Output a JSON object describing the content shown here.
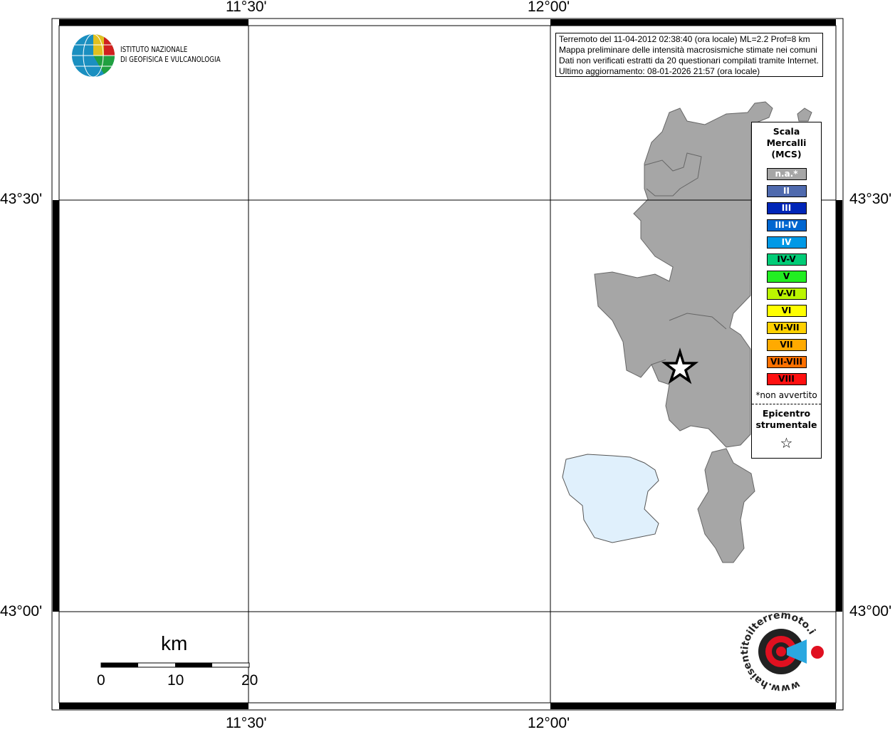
{
  "map": {
    "lon_labels": [
      "11°30'",
      "12°00'"
    ],
    "lat_labels": [
      "43°30'",
      "43°00'"
    ],
    "epicenter_marker": "star-icon",
    "land_color": "#a6a6a6",
    "lake_color": "#e0f0fc"
  },
  "logo": {
    "line1": "ISTITUTO NAZIONALE",
    "line2": "DI GEOFISICA E VULCANOLOGIA"
  },
  "info": {
    "line1": "Terremoto del 11-04-2012 02:38:40 (ora locale) ML=2.2 Prof=8 km",
    "line2": "Mappa preliminare delle intensità macrosismiche stimate nei comuni",
    "line3": "Dati non verificati estratti da 20 questionari compilati tramite Internet.",
    "line4": "Ultimo aggiornamento: 08-01-2026 21:57 (ora locale)"
  },
  "legend": {
    "title": [
      "Scala",
      "Mercalli",
      "(MCS)"
    ],
    "classes": [
      {
        "label": "n.a.*",
        "color": "#a6a6a6",
        "text": "#fff"
      },
      {
        "label": "II",
        "color": "#4f6aae",
        "text": "#fff"
      },
      {
        "label": "III",
        "color": "#0026b8",
        "text": "#fff"
      },
      {
        "label": "III-IV",
        "color": "#0066d0",
        "text": "#fff"
      },
      {
        "label": "IV",
        "color": "#0099e6",
        "text": "#fff"
      },
      {
        "label": "IV-V",
        "color": "#00cc77",
        "text": "#000"
      },
      {
        "label": "V",
        "color": "#22ee22",
        "text": "#000"
      },
      {
        "label": "V-VI",
        "color": "#bbf500",
        "text": "#000"
      },
      {
        "label": "VI",
        "color": "#ffff00",
        "text": "#000"
      },
      {
        "label": "VI-VII",
        "color": "#ffd000",
        "text": "#000"
      },
      {
        "label": "VII",
        "color": "#ffaa00",
        "text": "#000"
      },
      {
        "label": "VII-VIII",
        "color": "#ff7000",
        "text": "#000"
      },
      {
        "label": "VIII",
        "color": "#ff1010",
        "text": "#000"
      }
    ],
    "note": "*non avvertito",
    "epicenter_title": [
      "Epicentro",
      "strumentale"
    ]
  },
  "scalebar": {
    "unit": "km",
    "ticks": [
      "0",
      "10",
      "20"
    ]
  },
  "watermark": {
    "text": "www.haisentitoilterremoto.it"
  }
}
